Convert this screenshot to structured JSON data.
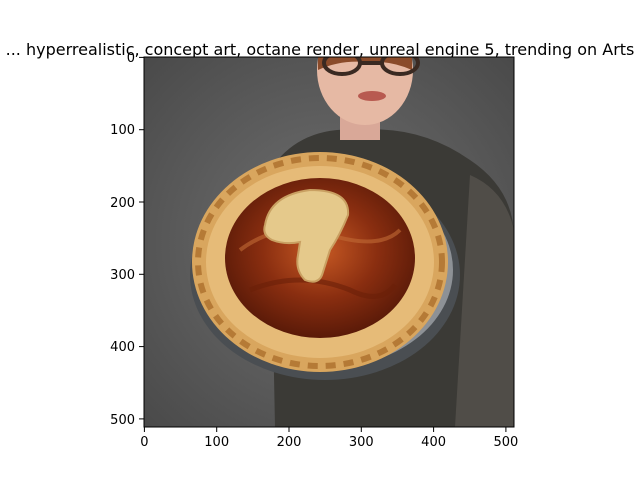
{
  "figure": {
    "title": "...  hyperrealistic, concept art, octane render, unreal engine 5, trending on Arts",
    "x_ticks": [
      "0",
      "100",
      "200",
      "300",
      "400",
      "500"
    ],
    "y_ticks": [
      "0",
      "100",
      "200",
      "300",
      "400",
      "500"
    ],
    "image_content": "Person with round glasses holding a pie with a caramel filling and a pastry number shape on top, dark coat, gray studio background"
  },
  "colors": {
    "background": "#5f5f5f",
    "crust": "#d9a65e",
    "filling": "#8a2e10",
    "coat": "#3b3a36",
    "skin": "#e6b9a4"
  }
}
